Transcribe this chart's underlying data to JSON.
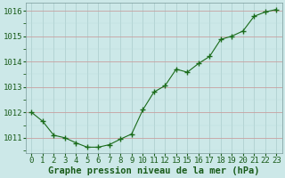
{
  "x_indices": [
    0,
    1,
    2,
    3,
    4,
    5,
    6,
    7,
    8,
    9,
    10,
    11,
    12,
    13,
    14,
    15,
    16,
    17,
    18,
    19,
    20,
    21,
    22
  ],
  "y": [
    1012.0,
    1011.65,
    1011.1,
    1011.0,
    1010.8,
    1010.63,
    1010.63,
    1010.73,
    1010.95,
    1011.15,
    1012.1,
    1012.8,
    1013.05,
    1013.7,
    1013.58,
    1013.92,
    1014.2,
    1014.87,
    1015.0,
    1015.2,
    1015.78,
    1015.95,
    1016.05
  ],
  "xtick_labels": [
    "0",
    "1",
    "2",
    "3",
    "4",
    "5",
    "6",
    "7",
    "8",
    "9",
    "10",
    "11",
    "12",
    "13",
    "15",
    "16",
    "17",
    "18",
    "19",
    "20",
    "21",
    "22",
    "23"
  ],
  "line_color": "#1a6b1a",
  "marker": "+",
  "marker_size": 4,
  "marker_linewidth": 1.0,
  "line_width": 0.8,
  "bg_color": "#cce8e8",
  "grid_color_major": "#aacccc",
  "grid_color_minor": "#bbdddd",
  "xlabel": "Graphe pression niveau de la mer (hPa)",
  "xlabel_color": "#1a5c1a",
  "xlabel_fontsize": 7.5,
  "tick_color": "#1a5c1a",
  "tick_fontsize": 6.5,
  "ylim": [
    1010.4,
    1016.3
  ],
  "yticks": [
    1011,
    1012,
    1013,
    1014,
    1015,
    1016
  ],
  "spine_color": "#7a9a9a"
}
